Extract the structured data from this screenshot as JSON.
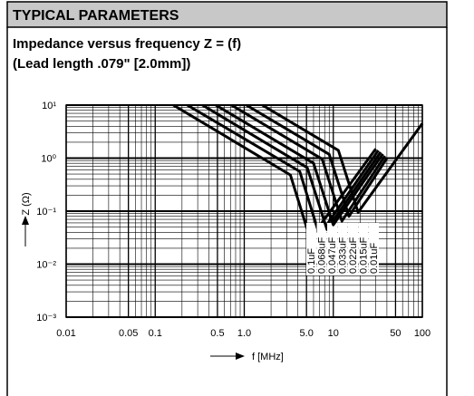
{
  "section": "TYPICAL PARAMETERS",
  "chart_data": {
    "type": "line",
    "title": "Impedance versus frequency Z = (f)",
    "subtitle": "(Lead length .079\" [2.0mm])",
    "x_label": "f [MHz]",
    "y_label": "Z (Ω)",
    "x_scale": "log",
    "y_scale": "log",
    "grid": true,
    "xlim": [
      0.01,
      100
    ],
    "ylim": [
      0.001,
      10
    ],
    "xticks": [
      0.01,
      0.05,
      0.1,
      0.5,
      {
        "value": 1,
        "label": "1.0"
      },
      {
        "value": 5,
        "label": "5.0"
      },
      10,
      50,
      100
    ],
    "yticks": [
      {
        "value": 0.001,
        "label": "10⁻³"
      },
      {
        "value": 0.01,
        "label": "10⁻²"
      },
      {
        "value": 0.1,
        "label": "10⁻¹"
      },
      {
        "value": 1,
        "label": "10⁰"
      },
      {
        "value": 10,
        "label": "10¹"
      }
    ],
    "series": [
      {
        "name": "0.1uF",
        "color": "#000000",
        "x": [
          0.16,
          3.3,
          5.5,
          30
        ],
        "values": [
          10,
          0.48,
          0.03,
          1.5
        ]
      },
      {
        "name": "0.068uF",
        "color": "#000000",
        "x": [
          0.23,
          4.2,
          7,
          32
        ],
        "values": [
          10,
          0.56,
          0.035,
          1.4
        ]
      },
      {
        "name": "0.047uF",
        "color": "#000000",
        "x": [
          0.34,
          5.1,
          8.5,
          34
        ],
        "values": [
          10,
          0.66,
          0.045,
          1.3
        ]
      },
      {
        "name": "0.033uF",
        "color": "#000000",
        "x": [
          0.48,
          6,
          10,
          36
        ],
        "values": [
          10,
          0.8,
          0.055,
          1.2
        ]
      },
      {
        "name": "0.022uF",
        "color": "#000000",
        "x": [
          0.72,
          7.5,
          12.5,
          38
        ],
        "values": [
          10,
          0.96,
          0.065,
          1.1
        ]
      },
      {
        "name": "0.015uF",
        "color": "#000000",
        "x": [
          1.06,
          9,
          15,
          40
        ],
        "values": [
          10,
          1.18,
          0.08,
          1.0
        ]
      },
      {
        "name": "0.01uF",
        "color": "#000000",
        "x": [
          1.6,
          11.4,
          19,
          100
        ],
        "values": [
          10,
          1.4,
          0.095,
          4.5
        ]
      }
    ]
  }
}
